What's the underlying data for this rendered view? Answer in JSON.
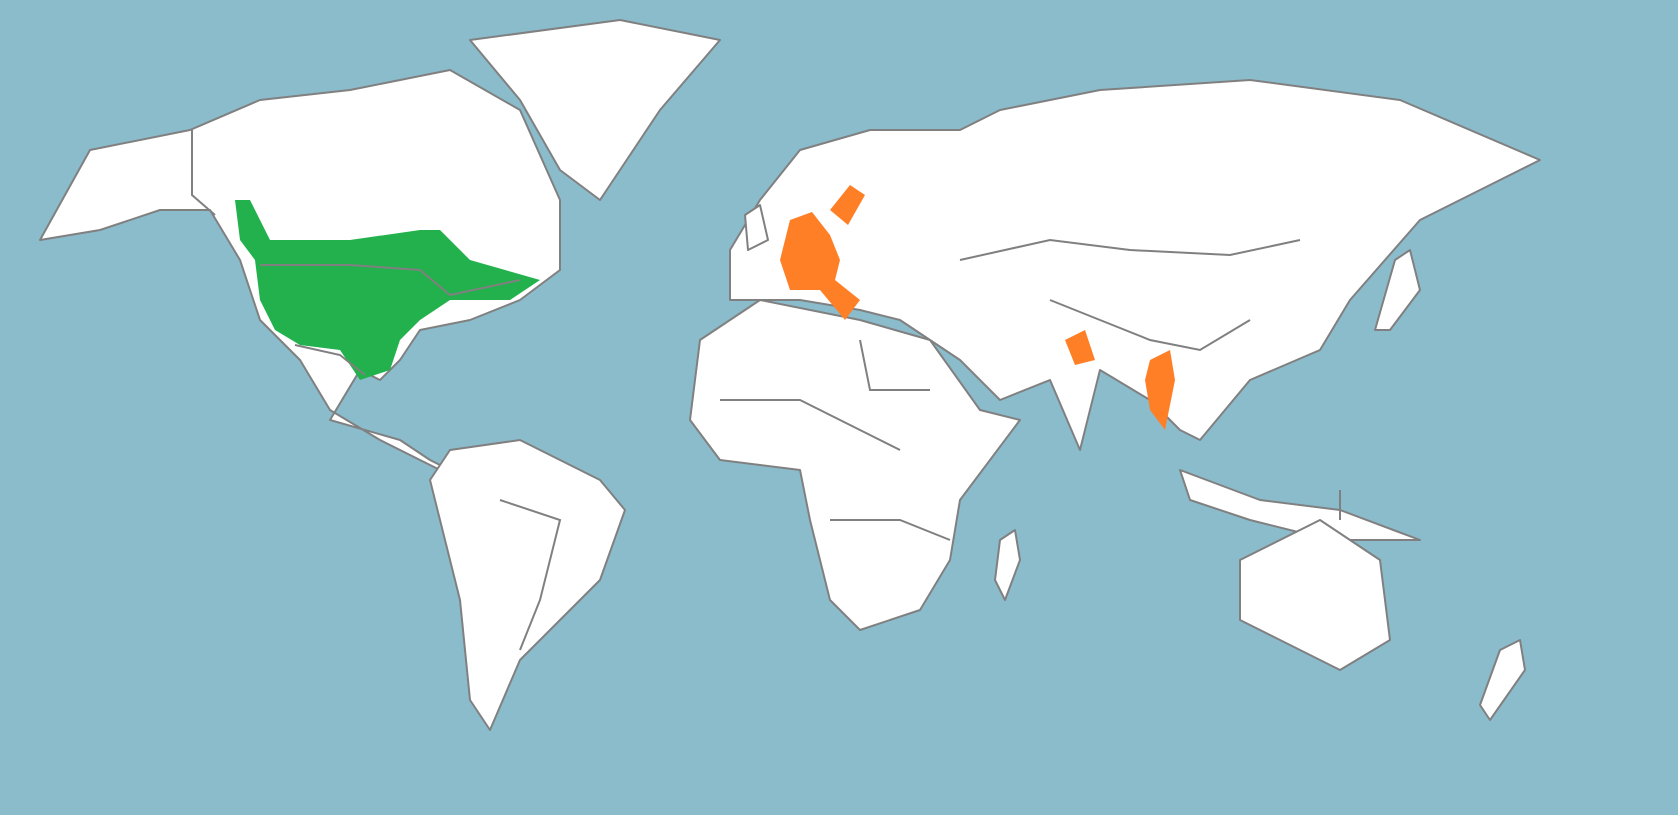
{
  "map": {
    "type": "world-choropleth",
    "projection": "equirectangular",
    "colors": {
      "ocean": "#8bbccc",
      "land": "#ffffff",
      "border": "#808080"
    },
    "highlights": [
      {
        "region": "united-states-canada-range",
        "color": "#22b14c"
      },
      {
        "region": "western-central-europe",
        "color": "#ff7f27"
      },
      {
        "region": "southern-sweden",
        "color": "#ff7f27"
      },
      {
        "region": "northern-india-pakistan",
        "color": "#ff7f27"
      },
      {
        "region": "myanmar",
        "color": "#ff7f27"
      }
    ]
  }
}
